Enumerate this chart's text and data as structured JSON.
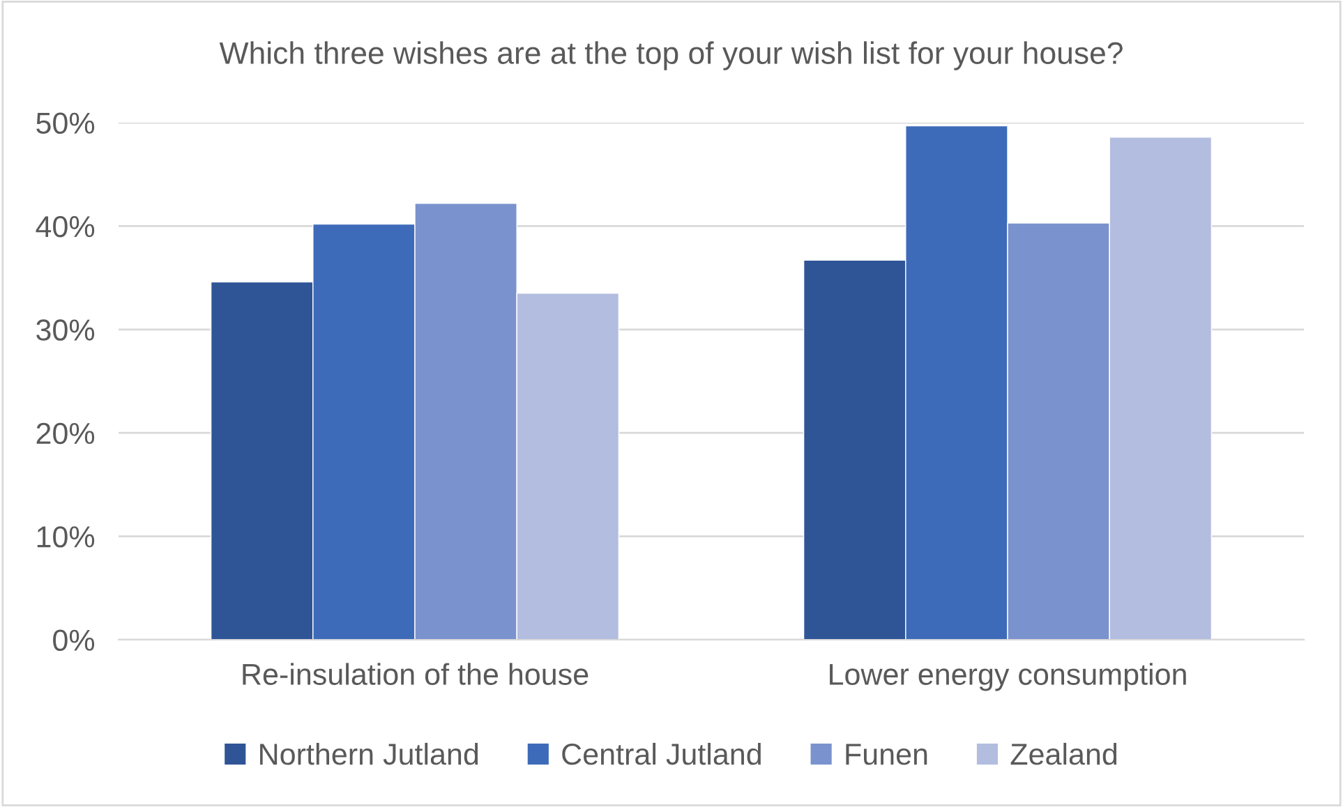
{
  "chart_data": {
    "type": "bar",
    "title": "Which three wishes are at the top of your wish list for your house?",
    "categories": [
      "Re-insulation of the house",
      "Lower energy consumption"
    ],
    "series": [
      {
        "name": "Northern Jutland",
        "color": "#2f5597",
        "values": [
          34.6,
          36.7
        ]
      },
      {
        "name": "Central Jutland",
        "color": "#3e6bb9",
        "values": [
          40.2,
          49.7
        ]
      },
      {
        "name": "Funen",
        "color": "#7a93cf",
        "values": [
          42.2,
          40.3
        ]
      },
      {
        "name": "Zealand",
        "color": "#b2bddf",
        "values": [
          33.5,
          48.6
        ]
      }
    ],
    "ylim": [
      0,
      50
    ],
    "yticks": [
      {
        "value": 0,
        "label": "0%"
      },
      {
        "value": 10,
        "label": "10%"
      },
      {
        "value": 20,
        "label": "20%"
      },
      {
        "value": 30,
        "label": "30%"
      },
      {
        "value": 40,
        "label": "40%"
      },
      {
        "value": 50,
        "label": "50%"
      }
    ],
    "grid": "y",
    "legend": "bottom"
  }
}
